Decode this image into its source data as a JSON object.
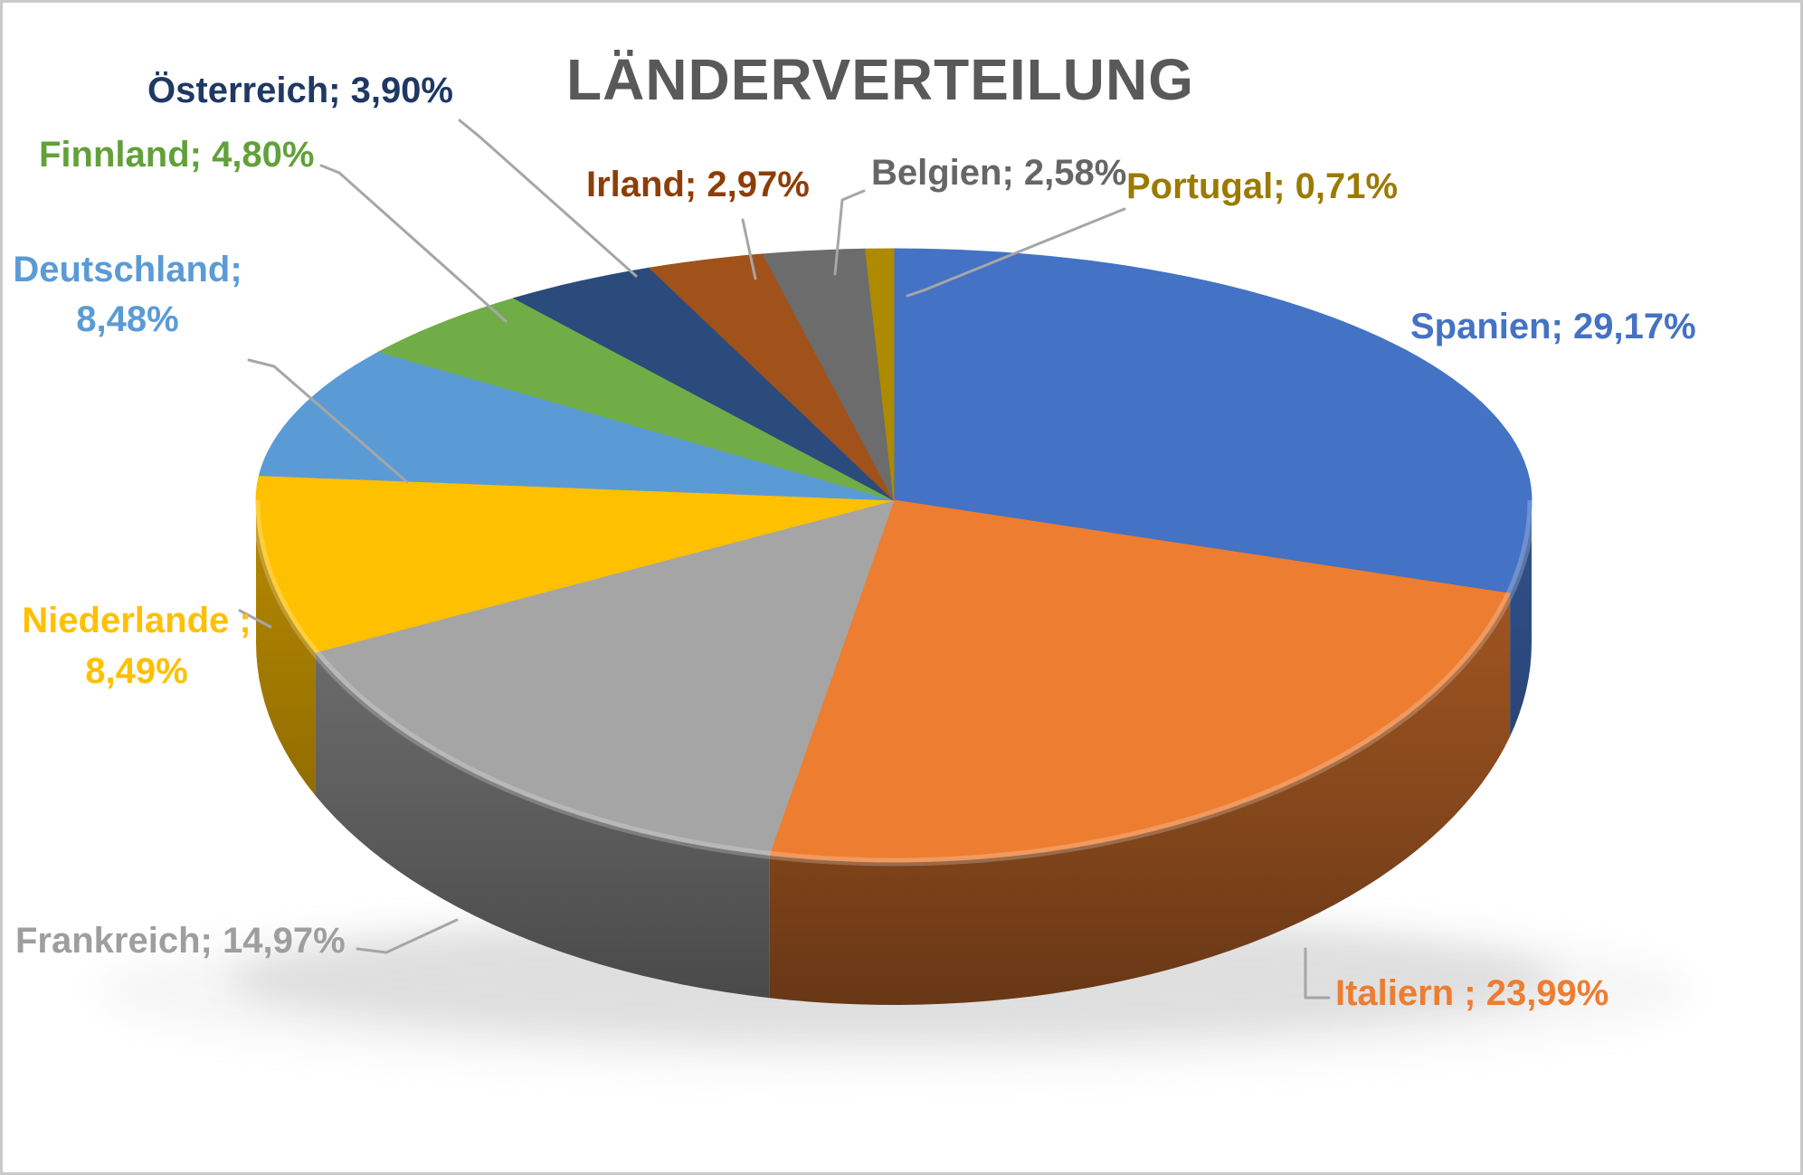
{
  "title": "LÄNDERVERTEILUNG",
  "title_color": "#595959",
  "leader_line_color": "#A6A6A6",
  "background_color": "#FFFFFF",
  "chart_data": {
    "type": "pie",
    "is_3d": true,
    "start_angle_deg": 0,
    "direction": "clockwise",
    "title": "LÄNDERVERTEILUNG",
    "legend_position": "none",
    "data_labels": "category; percent",
    "slices": [
      {
        "label": "Spanien",
        "value": 29.17,
        "display": "Spanien; 29,17%",
        "color": "#4472C4",
        "label_color": "#4472C4"
      },
      {
        "label": "Italiern",
        "value": 23.99,
        "display": "Italiern ; 23,99%",
        "color": "#ED7D31",
        "label_color": "#ED7D31"
      },
      {
        "label": "Frankreich",
        "value": 14.97,
        "display": "Frankreich; 14,97%",
        "color": "#A5A5A5",
        "label_color": "#9E9E9E"
      },
      {
        "label": "Niederlande",
        "value": 8.49,
        "display": "Niederlande ; 8,49%",
        "color": "#FFC000",
        "label_color": "#FFC000"
      },
      {
        "label": "Deutschland",
        "value": 8.48,
        "display": "Deutschland; 8,48%",
        "color": "#5B9BD5",
        "label_color": "#5B9BD5"
      },
      {
        "label": "Finnland",
        "value": 4.8,
        "display": "Finnland; 4,80%",
        "color": "#70AD47",
        "label_color": "#62A13A"
      },
      {
        "label": "Österreich",
        "value": 3.9,
        "display": "Österreich; 3,90%",
        "color": "#2A4B7C",
        "label_color": "#1F3864"
      },
      {
        "label": "Irland",
        "value": 2.97,
        "display": "Irland; 2,97%",
        "color": "#A0521A",
        "label_color": "#8D3E08"
      },
      {
        "label": "Belgien",
        "value": 2.58,
        "display": "Belgien; 2,58%",
        "color": "#6C6C6C",
        "label_color": "#666666"
      },
      {
        "label": "Portugal",
        "value": 0.71,
        "display": "Portugal; 0,71%",
        "color": "#AD8A00",
        "label_color": "#9C7A00"
      }
    ]
  },
  "labels": {
    "spanien": "Spanien; 29,17%",
    "italiern": "Italiern ; 23,99%",
    "frankreich": "Frankreich; 14,97%",
    "niederlande_line1": "Niederlande ;",
    "niederlande_line2": "8,49%",
    "deutschland_line1": "Deutschland;",
    "deutschland_line2": "8,48%",
    "finnland": "Finnland; 4,80%",
    "oesterreich": "Österreich; 3,90%",
    "irland": "Irland; 2,97%",
    "belgien": "Belgien; 2,58%",
    "portugal": "Portugal; 0,71%"
  }
}
